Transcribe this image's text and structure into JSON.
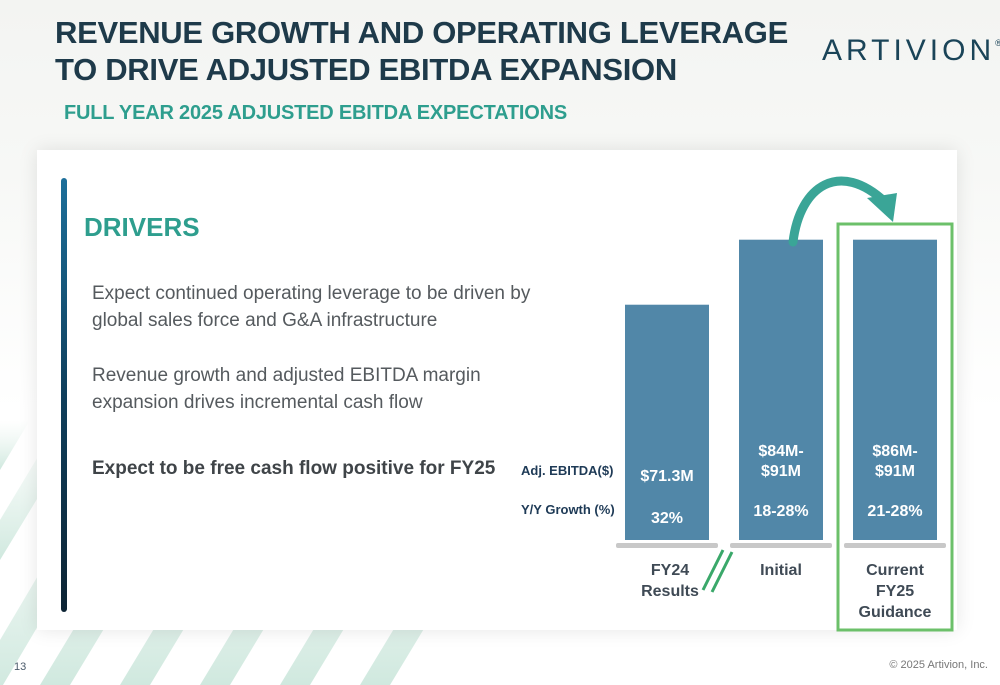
{
  "title_line1": "REVENUE GROWTH AND OPERATING LEVERAGE",
  "title_line2": "TO DRIVE ADJUSTED EBITDA EXPANSION",
  "subtitle": "FULL YEAR 2025 ADJUSTED EBITDA EXPECTATIONS",
  "logo": {
    "text": "ARTIVION",
    "mark": "®"
  },
  "drivers": {
    "heading": "DRIVERS",
    "items": [
      "Expect continued operating leverage to be driven by global sales force and G&A infrastructure",
      "Revenue growth and adjusted EBITDA margin expansion drives incremental cash flow"
    ],
    "emphasis": "Expect to be free cash flow positive for FY25"
  },
  "chart_data": {
    "type": "bar",
    "categories": [
      "FY24 Results",
      "Initial",
      "Current FY25 Guidance"
    ],
    "category_lines": [
      [
        "FY24",
        "Results"
      ],
      [
        "Initial"
      ],
      [
        "Current",
        "FY25",
        "Guidance"
      ]
    ],
    "row_labels": {
      "value": "Adj. EBITDA($)",
      "growth": "Y/Y Growth (%)"
    },
    "value_labels": [
      [
        "$71.3M"
      ],
      [
        "$84M-",
        "$91M"
      ],
      [
        "$86M-",
        "$91M"
      ]
    ],
    "growth_labels": [
      "32%",
      "18-28%",
      "21-28%"
    ],
    "values": [
      71.3,
      91,
      91
    ],
    "ranges": [
      [
        71.3,
        71.3
      ],
      [
        84,
        91
      ],
      [
        86,
        91
      ]
    ],
    "highlight": "Current FY25 Guidance",
    "axis_break": true,
    "colors": {
      "bar": "#5187a8",
      "highlight_box": "#6cc06a",
      "arrow": "#3aa597",
      "baseline": "#c8c8c8"
    }
  },
  "footer": {
    "page": "13",
    "copyright": "© 2025 Artivion, Inc."
  }
}
